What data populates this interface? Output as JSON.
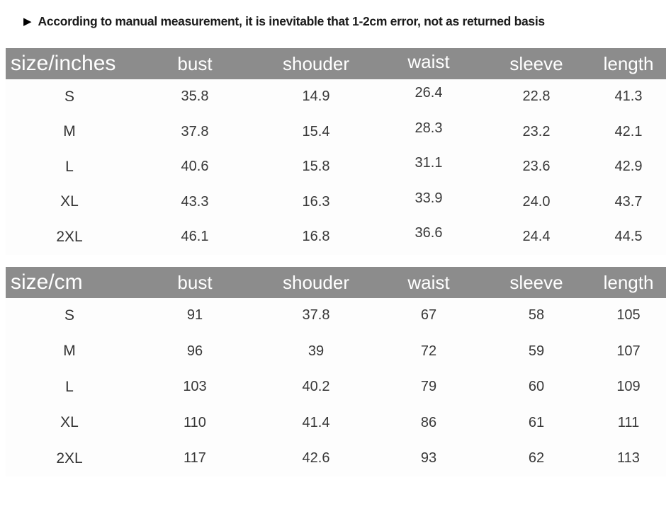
{
  "disclaimer": {
    "icon": "play-triangle-icon",
    "icon_glyph": "▶",
    "text": "According to manual measurement, it is inevitable that 1-2cm error, not as returned basis"
  },
  "colors": {
    "header_bg": "#8c8c8c",
    "header_text": "#ffffff",
    "body_text": "#383838"
  },
  "tables": [
    {
      "title": "size/inches",
      "columns": [
        "bust",
        "shouder",
        "waist",
        "sleeve",
        "length"
      ],
      "rows": [
        {
          "size": "S",
          "values": [
            "35.8",
            "14.9",
            "26.4",
            "22.8",
            "41.3"
          ]
        },
        {
          "size": "M",
          "values": [
            "37.8",
            "15.4",
            "28.3",
            "23.2",
            "42.1"
          ]
        },
        {
          "size": "L",
          "values": [
            "40.6",
            "15.8",
            "31.1",
            "23.6",
            "42.9"
          ]
        },
        {
          "size": "XL",
          "values": [
            "43.3",
            "16.3",
            "33.9",
            "24.0",
            "43.7"
          ]
        },
        {
          "size": "2XL",
          "values": [
            "46.1",
            "16.8",
            "36.6",
            "24.4",
            "44.5"
          ]
        }
      ]
    },
    {
      "title": "size/cm",
      "columns": [
        "bust",
        "shouder",
        "waist",
        "sleeve",
        "length"
      ],
      "rows": [
        {
          "size": "S",
          "values": [
            "91",
            "37.8",
            "67",
            "58",
            "105"
          ]
        },
        {
          "size": "M",
          "values": [
            "96",
            "39",
            "72",
            "59",
            "107"
          ]
        },
        {
          "size": "L",
          "values": [
            "103",
            "40.2",
            "79",
            "60",
            "109"
          ]
        },
        {
          "size": "XL",
          "values": [
            "110",
            "41.4",
            "86",
            "61",
            "111"
          ]
        },
        {
          "size": "2XL",
          "values": [
            "117",
            "42.6",
            "93",
            "62",
            "113"
          ]
        }
      ]
    }
  ]
}
